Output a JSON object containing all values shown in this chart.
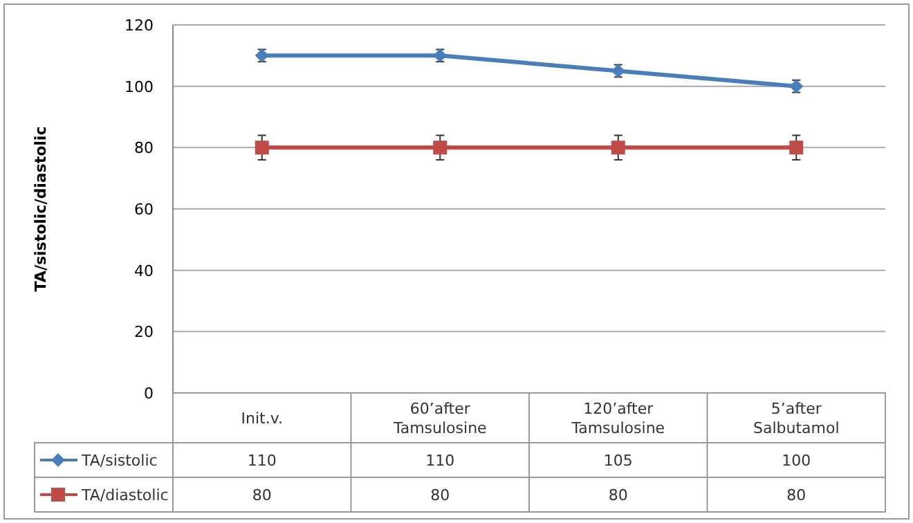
{
  "chart_data": {
    "type": "line",
    "ylabel": "TA/sistolic/diastolic",
    "categories": [
      "Init.v.",
      "60’after Tamsulosine",
      "120’after Tamsulosine",
      "5’after Salbutamol"
    ],
    "series": [
      {
        "name": "TA/sistolic",
        "color": "#4a7ebb",
        "marker": "diamond",
        "values": [
          110,
          110,
          105,
          100
        ],
        "errors": [
          2,
          2,
          2,
          2
        ]
      },
      {
        "name": "TA/diastolic",
        "color": "#be4b48",
        "marker": "square",
        "values": [
          80,
          80,
          80,
          80
        ],
        "errors": [
          4,
          4,
          4,
          4
        ]
      }
    ],
    "ylim": [
      0,
      120
    ],
    "yticks": [
      0,
      20,
      40,
      60,
      80,
      100,
      120
    ],
    "grid": "y",
    "data_labels": true,
    "legend": "bottom",
    "line_style": "solid"
  }
}
